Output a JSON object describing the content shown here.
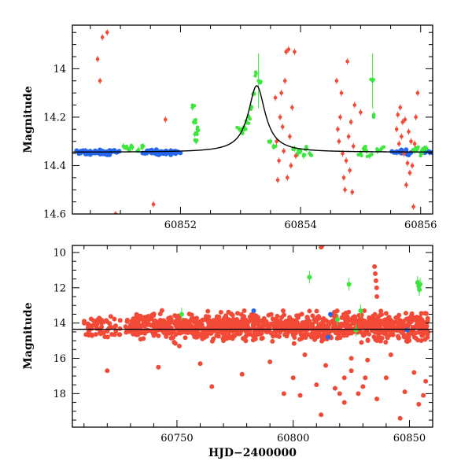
{
  "chart_data": [
    {
      "type": "scatter",
      "title": "",
      "xlabel": "",
      "ylabel": "Magnitude",
      "xlim": [
        60850.2,
        60856.2
      ],
      "ylim": [
        14.6,
        13.82
      ],
      "y_inverted": true,
      "xticks": [
        60852,
        60854,
        60856
      ],
      "yticks": [
        14,
        14.2,
        14.4,
        14.6
      ],
      "colors": {
        "red": "#f24a36",
        "green": "#3ce63c",
        "blue": "#2466f0",
        "model": "#000000"
      },
      "model_curve": {
        "baseline": 14.345,
        "peak_x": 60853.27,
        "peak_y": 14.07
      },
      "series": [
        {
          "color": "blue",
          "points": [
            [
              60850.35,
              14.345
            ],
            [
              60850.42,
              14.34
            ],
            [
              60850.5,
              14.35
            ],
            [
              60850.58,
              14.345
            ],
            [
              60850.66,
              14.34
            ],
            [
              60850.74,
              14.35
            ],
            [
              60850.82,
              14.345
            ],
            [
              60850.9,
              14.34
            ],
            [
              60851.45,
              14.345
            ],
            [
              60851.52,
              14.34
            ],
            [
              60851.6,
              14.35
            ],
            [
              60851.68,
              14.345
            ],
            [
              60851.76,
              14.35
            ],
            [
              60851.84,
              14.34
            ],
            [
              60851.92,
              14.345
            ],
            [
              60855.6,
              14.345
            ],
            [
              60855.68,
              14.34
            ],
            [
              60855.76,
              14.35
            ],
            [
              60856.15,
              14.345
            ]
          ]
        },
        {
          "color": "green",
          "points": [
            [
              60851.05,
              14.32
            ],
            [
              60851.12,
              14.33
            ],
            [
              60851.2,
              14.325
            ],
            [
              60851.3,
              14.335
            ],
            [
              60851.38,
              14.32
            ],
            [
              60852.2,
              14.16
            ],
            [
              60852.22,
              14.22
            ],
            [
              60852.24,
              14.27
            ],
            [
              60852.26,
              14.3
            ],
            [
              60852.28,
              14.25
            ],
            [
              60852.98,
              14.25
            ],
            [
              60853.02,
              14.26
            ],
            [
              60853.06,
              14.24
            ],
            [
              60853.1,
              14.22
            ],
            [
              60853.14,
              14.2
            ],
            [
              60853.18,
              14.16
            ],
            [
              60853.22,
              14.1
            ],
            [
              60853.26,
              14.02
            ],
            [
              60853.3,
              14.05
            ],
            [
              60853.5,
              14.3
            ],
            [
              60853.55,
              14.32
            ],
            [
              60853.9,
              14.33
            ],
            [
              60853.95,
              14.35
            ],
            [
              60854.0,
              14.34
            ],
            [
              60854.05,
              14.36
            ],
            [
              60854.1,
              14.33
            ],
            [
              60854.15,
              14.35
            ],
            [
              60855.0,
              14.35
            ],
            [
              60855.05,
              14.33
            ],
            [
              60855.1,
              14.34
            ],
            [
              60855.15,
              14.36
            ],
            [
              60855.2,
              14.05
            ],
            [
              60855.22,
              14.19
            ],
            [
              60855.28,
              14.34
            ],
            [
              60855.35,
              14.33
            ],
            [
              60855.9,
              14.34
            ],
            [
              60855.95,
              14.33
            ],
            [
              60856.0,
              14.35
            ],
            [
              60856.05,
              14.34
            ],
            [
              60856.1,
              14.33
            ]
          ]
        },
        {
          "color": "red",
          "points": [
            [
              60850.62,
              13.96
            ],
            [
              60850.66,
              14.05
            ],
            [
              60850.7,
              13.87
            ],
            [
              60850.78,
              13.85
            ],
            [
              60850.92,
              14.6
            ],
            [
              60851.55,
              14.56
            ],
            [
              60851.75,
              14.21
            ],
            [
              60853.58,
              14.12
            ],
            [
              60853.6,
              14.3
            ],
            [
              60853.62,
              14.46
            ],
            [
              60853.64,
              14.38
            ],
            [
              60853.66,
              14.2
            ],
            [
              60853.68,
              14.1
            ],
            [
              60853.7,
              14.24
            ],
            [
              60853.72,
              14.34
            ],
            [
              60853.74,
              14.05
            ],
            [
              60853.76,
              13.93
            ],
            [
              60853.78,
              14.45
            ],
            [
              60853.8,
              13.92
            ],
            [
              60853.82,
              14.28
            ],
            [
              60853.84,
              14.4
            ],
            [
              60853.86,
              14.16
            ],
            [
              60853.9,
              13.93
            ],
            [
              60853.92,
              14.36
            ],
            [
              60854.6,
              14.05
            ],
            [
              60854.62,
              14.25
            ],
            [
              60854.64,
              14.3
            ],
            [
              60854.66,
              14.2
            ],
            [
              60854.68,
              14.1
            ],
            [
              60854.7,
              14.35
            ],
            [
              60854.72,
              14.45
            ],
            [
              60854.74,
              14.5
            ],
            [
              60854.76,
              14.38
            ],
            [
              60854.78,
              13.97
            ],
            [
              60854.8,
              14.28
            ],
            [
              60854.82,
              14.42
            ],
            [
              60854.84,
              14.22
            ],
            [
              60854.86,
              14.51
            ],
            [
              60854.88,
              14.32
            ],
            [
              60854.9,
              14.15
            ],
            [
              60855.0,
              14.18
            ],
            [
              60855.6,
              14.25
            ],
            [
              60855.62,
              14.19
            ],
            [
              60855.64,
              14.31
            ],
            [
              60855.66,
              14.16
            ],
            [
              60855.68,
              14.28
            ],
            [
              60855.7,
              14.22
            ],
            [
              60855.72,
              14.35
            ],
            [
              60855.74,
              14.21
            ],
            [
              60855.76,
              14.48
            ],
            [
              60855.78,
              14.39
            ],
            [
              60855.8,
              14.26
            ],
            [
              60855.82,
              14.43
            ],
            [
              60855.84,
              14.3
            ],
            [
              60855.86,
              14.4
            ],
            [
              60855.88,
              14.57
            ],
            [
              60855.9,
              14.31
            ],
            [
              60855.92,
              14.2
            ],
            [
              60855.95,
              14.1
            ]
          ]
        }
      ]
    },
    {
      "type": "scatter",
      "title": "",
      "xlabel": "HJD−2400000",
      "ylabel": "Magnitude",
      "xlim": [
        60705,
        60860
      ],
      "ylim": [
        19.9,
        9.6
      ],
      "y_inverted": true,
      "xticks": [
        60750,
        60800,
        60850
      ],
      "yticks": [
        10,
        12,
        14,
        16,
        18
      ],
      "model_line": {
        "y": 14.35
      },
      "red_band": {
        "x_start": 60710,
        "x_end": 60858,
        "y_mid": 14.2,
        "y_spread": 0.5
      },
      "series": [
        {
          "color": "red",
          "points": [
            [
              60712,
              14.2
            ],
            [
              60717,
              14.4
            ],
            [
              60720,
              16.7
            ],
            [
              60730,
              14.1
            ],
            [
              60742,
              16.5
            ],
            [
              60751,
              15.3
            ],
            [
              60760,
              16.3
            ],
            [
              60765,
              17.6
            ],
            [
              60770,
              15.0
            ],
            [
              60778,
              16.9
            ],
            [
              60790,
              16.2
            ],
            [
              60796,
              18.0
            ],
            [
              60800,
              17.1
            ],
            [
              60803,
              18.1
            ],
            [
              60805,
              15.8
            ],
            [
              60810,
              17.5
            ],
            [
              60812,
              19.2
            ],
            [
              60814,
              16.4
            ],
            [
              60818,
              17.7
            ],
            [
              60820,
              18.0
            ],
            [
              60822,
              18.5
            ],
            [
              60825,
              16.0
            ],
            [
              60830,
              17.6
            ],
            [
              60832,
              16.1
            ],
            [
              60836,
              18.3
            ],
            [
              60840,
              17.1
            ],
            [
              60842,
              15.8
            ],
            [
              60846,
              19.4
            ],
            [
              60848,
              17.9
            ],
            [
              60852,
              16.8
            ],
            [
              60854,
              18.6
            ],
            [
              60856,
              18.1
            ],
            [
              60857,
              17.3
            ],
            [
              60812,
              9.7
            ],
            [
              60812.5,
              9.6
            ],
            [
              60835,
              10.8
            ],
            [
              60835.3,
              11.2
            ],
            [
              60835.6,
              11.6
            ],
            [
              60835.9,
              12.0
            ],
            [
              60836,
              12.5
            ],
            [
              60822,
              17.1
            ],
            [
              60825,
              16.7
            ],
            [
              60828,
              18.0
            ],
            [
              60831,
              17.1
            ]
          ]
        },
        {
          "color": "green",
          "points": [
            [
              60752,
              13.5
            ],
            [
              60807,
              11.4
            ],
            [
              60824,
              11.8
            ],
            [
              60829,
              13.3
            ],
            [
              60853.5,
              11.7
            ],
            [
              60854,
              11.9
            ],
            [
              60854.3,
              12.1
            ],
            [
              60854.6,
              11.8
            ],
            [
              60827,
              14.4
            ],
            [
              60819,
              13.8
            ]
          ]
        },
        {
          "color": "blue",
          "points": [
            [
              60783,
              13.3
            ],
            [
              60816,
              13.5
            ],
            [
              60815,
              14.8
            ],
            [
              60849,
              14.4
            ]
          ]
        }
      ]
    }
  ]
}
